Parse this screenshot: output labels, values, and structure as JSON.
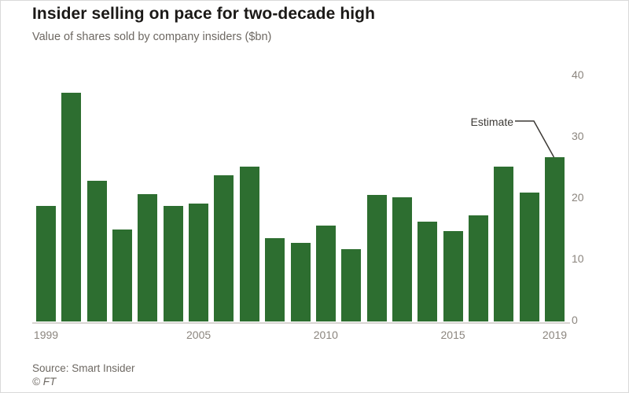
{
  "header": {
    "title": "Insider selling on pace for two-decade high",
    "subtitle": "Value of shares sold by company insiders ($bn)"
  },
  "chart_data": {
    "type": "bar",
    "title": "Insider selling on pace for two-decade high",
    "subtitle": "Value of shares sold by company insiders ($bn)",
    "categories": [
      "1999",
      "2000",
      "2001",
      "2002",
      "2003",
      "2004",
      "2005",
      "2006",
      "2007",
      "2008",
      "2009",
      "2010",
      "2011",
      "2012",
      "2013",
      "2014",
      "2015",
      "2016",
      "2017",
      "2018",
      "2019"
    ],
    "values": [
      18.9,
      37.3,
      23.0,
      15.0,
      20.8,
      18.9,
      19.2,
      23.8,
      25.3,
      13.6,
      12.8,
      15.6,
      11.8,
      20.7,
      20.3,
      16.3,
      14.8,
      17.3,
      25.3,
      21.0,
      26.8
    ],
    "xlabel": "",
    "ylabel": "",
    "ylim": [
      0,
      40
    ],
    "y_ticks": [
      0,
      10,
      20,
      30,
      40
    ],
    "y_axis_side": "right",
    "grid": "off",
    "legend": "none",
    "x_ticks": [
      {
        "label": "1999",
        "index": 0
      },
      {
        "label": "2005",
        "index": 6
      },
      {
        "label": "2010",
        "index": 11
      },
      {
        "label": "2015",
        "index": 16
      },
      {
        "label": "2019",
        "index": 20
      }
    ],
    "annotation": {
      "label": "Estimate",
      "target_category": "2019"
    },
    "colors": {
      "bar": "#2d6e30",
      "axis_line": "#d8d5d1",
      "tick_text": "#8b857e",
      "annotation": "#3c3935"
    }
  },
  "footer": {
    "source": "Source: Smart Insider",
    "credit": "© FT"
  }
}
